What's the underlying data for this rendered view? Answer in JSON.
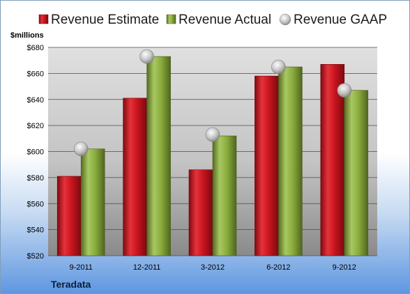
{
  "chart_data": {
    "type": "bar",
    "categories": [
      "9-2011",
      "12-2011",
      "3-2012",
      "6-2012",
      "9-2012"
    ],
    "series": [
      {
        "name": "Revenue Estimate",
        "kind": "bar",
        "color": "#c8141e",
        "values": [
          581,
          641,
          586,
          658,
          667
        ]
      },
      {
        "name": "Revenue Actual",
        "kind": "bar",
        "color": "#8aac3c",
        "values": [
          602,
          673,
          612,
          665,
          647
        ]
      },
      {
        "name": "Revenue GAAP",
        "kind": "marker",
        "color": "#c0c0c0",
        "values": [
          602,
          673,
          613,
          665,
          647
        ]
      }
    ],
    "ylabel": "$millions",
    "ylim": [
      520,
      680
    ],
    "yticks": [
      520,
      540,
      560,
      580,
      600,
      620,
      640,
      660,
      680
    ],
    "ytick_labels": [
      "$520",
      "$540",
      "$560",
      "$580",
      "$600",
      "$620",
      "$640",
      "$660",
      "$680"
    ],
    "grid": true,
    "legend": "top",
    "company": "Teradata"
  }
}
